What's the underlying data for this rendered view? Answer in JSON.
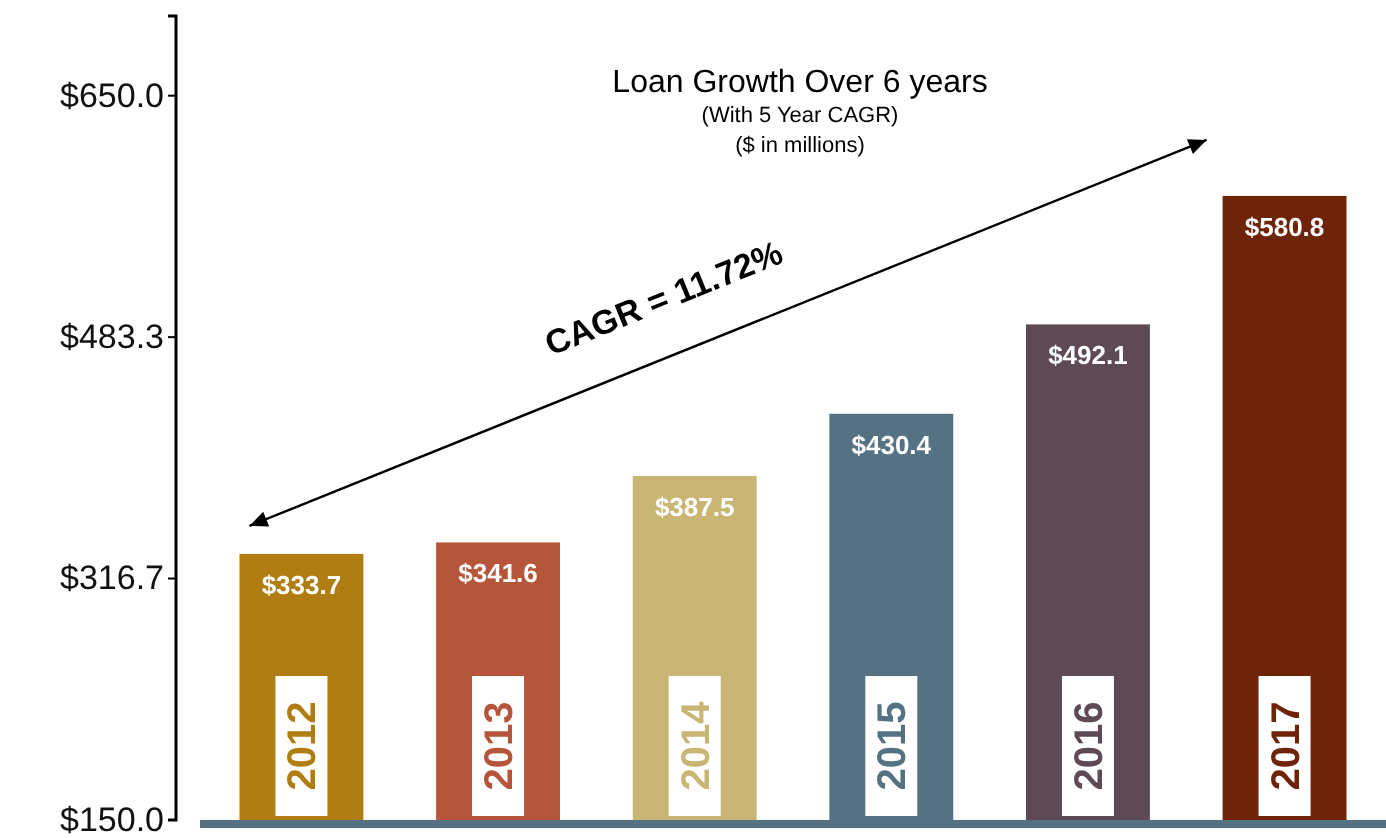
{
  "chart_data": {
    "type": "bar",
    "title": "Loan Growth Over 6 years",
    "subtitle": "(With 5 Year CAGR)",
    "annotations": [
      "($ in millions)",
      "CAGR = 11.72%"
    ],
    "categories": [
      "2012",
      "2013",
      "2014",
      "2015",
      "2016",
      "2017"
    ],
    "values": [
      333.7,
      341.6,
      387.5,
      430.4,
      492.1,
      580.8
    ],
    "colors": [
      "#b07d12",
      "#b5553a",
      "#c9b574",
      "#557282",
      "#5d4a55",
      "#6e2408"
    ],
    "ylim": [
      150,
      705
    ],
    "yticks": [
      {
        "value": 150,
        "label": "$150.0"
      },
      {
        "value": 316.7,
        "label": "$316.7"
      },
      {
        "value": 483.3,
        "label": "$483.3"
      },
      {
        "value": 650,
        "label": "$650.0"
      }
    ],
    "value_labels": [
      "$333.7",
      "$341.6",
      "$387.5",
      "$430.4",
      "$492.1",
      "$580.8"
    ],
    "grid": false
  }
}
